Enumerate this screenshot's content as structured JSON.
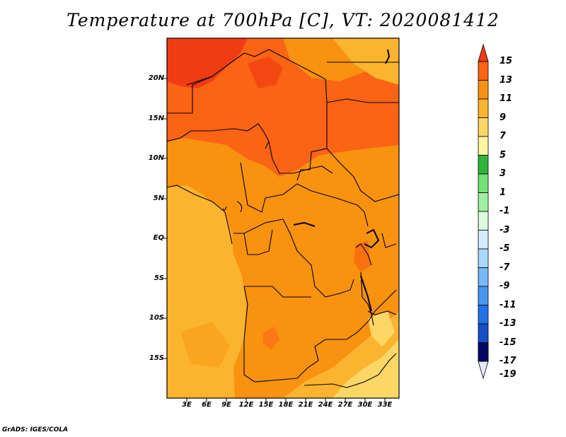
{
  "title": "Temperature at 700hPa [C], VT: 2020081412",
  "footer": "GrADS: IGES/COLA",
  "map": {
    "y_labels": [
      "20N",
      "15N",
      "10N",
      "5N",
      "EQ",
      "5S",
      "10S",
      "15S"
    ],
    "x_labels": [
      "3E",
      "6E",
      "9E",
      "12E",
      "15E",
      "18E",
      "21E",
      "24E",
      "27E",
      "30E",
      "33E"
    ]
  },
  "colorbar": {
    "labels": [
      "15",
      "13",
      "11",
      "9",
      "7",
      "5",
      "3",
      "1",
      "-1",
      "-3",
      "-5",
      "-7",
      "-9",
      "-11",
      "-13",
      "-15",
      "-17",
      "-19"
    ],
    "colors": [
      "#f03c14",
      "#fa6414",
      "#f9920f",
      "#fbb42f",
      "#fdd766",
      "#fdf5a0",
      "#2fb43c",
      "#73e173",
      "#a0f0a0",
      "#dcfadc",
      "#d4ecfc",
      "#a8d8fc",
      "#78b8f8",
      "#4896f0",
      "#2473e6",
      "#1450c8",
      "#0a28a0",
      "#000a64"
    ]
  }
}
